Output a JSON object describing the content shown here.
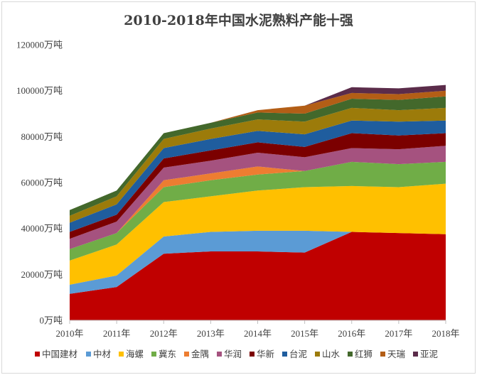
{
  "chart_data": {
    "type": "area",
    "stacked": true,
    "title": "2010-2018年中国水泥熟料产能十强",
    "xlabel": "",
    "ylabel": "",
    "categories": [
      "2010年",
      "2011年",
      "2012年",
      "2013年",
      "2014年",
      "2015年",
      "2016年",
      "2017年",
      "2018年"
    ],
    "ylim": [
      0,
      120000
    ],
    "ytick_step": 20000,
    "ytick_suffix": "万吨",
    "yticks": [
      "0万吨",
      "20000万吨",
      "40000万吨",
      "60000万吨",
      "80000万吨",
      "100000万吨",
      "120000万吨"
    ],
    "grid": false,
    "legend": "bottom",
    "series": [
      {
        "name": "中国建材",
        "color": "#c00000",
        "values": [
          11500,
          14500,
          29000,
          30000,
          30000,
          29500,
          38500,
          38000,
          37500
        ]
      },
      {
        "name": "中材",
        "color": "#5b9bd5",
        "values": [
          4000,
          5000,
          7500,
          8500,
          9000,
          9500,
          0,
          0,
          0
        ]
      },
      {
        "name": "海螺",
        "color": "#ffc000",
        "values": [
          10500,
          13500,
          15000,
          15500,
          17500,
          19000,
          20000,
          20000,
          22000
        ]
      },
      {
        "name": "冀东",
        "color": "#70ad47",
        "values": [
          5000,
          5000,
          6500,
          7000,
          7000,
          7000,
          10500,
          10000,
          9500
        ]
      },
      {
        "name": "金隅",
        "color": "#ed7d31",
        "values": [
          0,
          0,
          3000,
          3000,
          3500,
          0,
          0,
          0,
          0
        ]
      },
      {
        "name": "华润",
        "color": "#a5527f",
        "values": [
          4500,
          5000,
          5500,
          5500,
          6000,
          6000,
          6000,
          6500,
          7000
        ]
      },
      {
        "name": "华新",
        "color": "#7b0000",
        "values": [
          3000,
          3000,
          4000,
          4500,
          4500,
          4500,
          6500,
          6000,
          5500
        ]
      },
      {
        "name": "台泥",
        "color": "#1f5d9e",
        "values": [
          4000,
          4500,
          4500,
          5000,
          5000,
          5500,
          5500,
          6000,
          5500
        ]
      },
      {
        "name": "山水",
        "color": "#9c7b0a",
        "values": [
          3000,
          3500,
          4000,
          4500,
          5000,
          5500,
          5500,
          5000,
          5500
        ]
      },
      {
        "name": "红狮",
        "color": "#43682b",
        "values": [
          2500,
          2500,
          2500,
          2500,
          3000,
          3500,
          4000,
          4500,
          5000
        ]
      },
      {
        "name": "天瑞",
        "color": "#b35e16",
        "values": [
          0,
          0,
          0,
          0,
          1000,
          3500,
          2500,
          2500,
          2500
        ]
      },
      {
        "name": "亚泥",
        "color": "#5b2c4a",
        "values": [
          0,
          0,
          0,
          0,
          0,
          0,
          2500,
          2500,
          2500
        ]
      }
    ]
  }
}
